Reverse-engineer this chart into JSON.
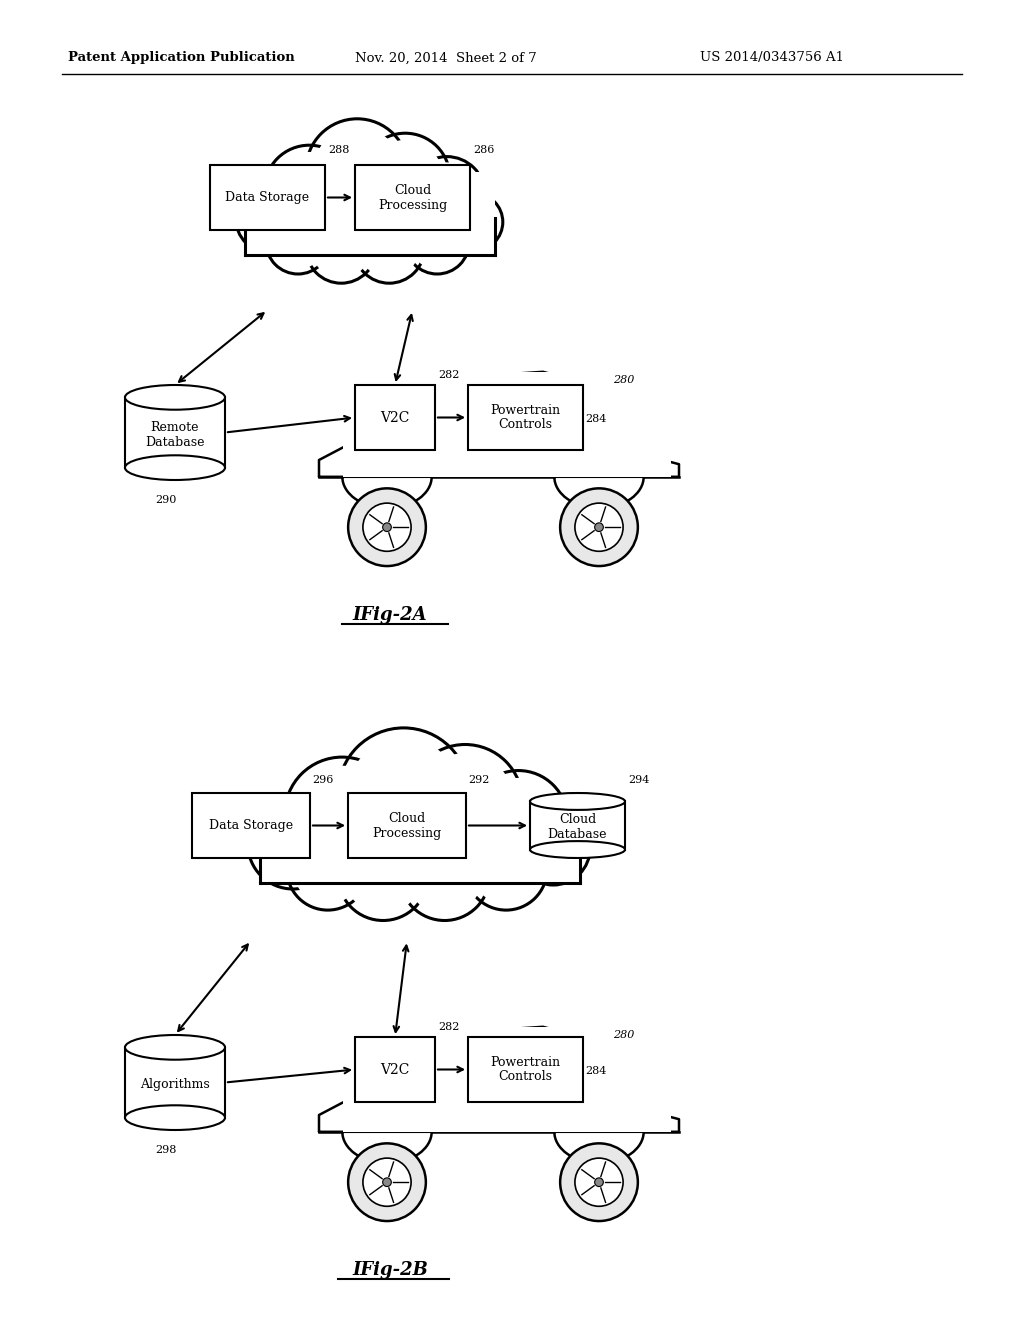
{
  "header_left": "Patent Application Publication",
  "header_mid": "Nov. 20, 2014  Sheet 2 of 7",
  "header_right": "US 2014/0343756 A1",
  "fig2a_label": "IFig-2A",
  "fig2b_label": "IFig-2B",
  "background_color": "#ffffff",
  "line_color": "#000000",
  "fig2a": {
    "ref_data_storage": "288",
    "ref_cloud_processing": "286",
    "box_data_storage": "Data Storage",
    "box_cloud_processing": "Cloud\nProcessing",
    "box_v2c": "V2C",
    "box_powertrain": "Powertrain\nControls",
    "ref_v2c": "282",
    "ref_powertrain": "284",
    "ref_car": "280",
    "cyl_label": "Remote\nDatabase",
    "ref_cyl": "290"
  },
  "fig2b": {
    "ref_data_storage": "296",
    "ref_cloud_processing": "292",
    "ref_cloud_database": "294",
    "box_data_storage": "Data Storage",
    "box_cloud_processing": "Cloud\nProcessing",
    "box_cloud_database": "Cloud\nDatabase",
    "box_v2c": "V2C",
    "box_powertrain": "Powertrain\nControls",
    "ref_v2c": "282",
    "ref_powertrain": "284",
    "ref_car": "280",
    "cyl_label": "Algorithms",
    "ref_cyl": "298"
  }
}
